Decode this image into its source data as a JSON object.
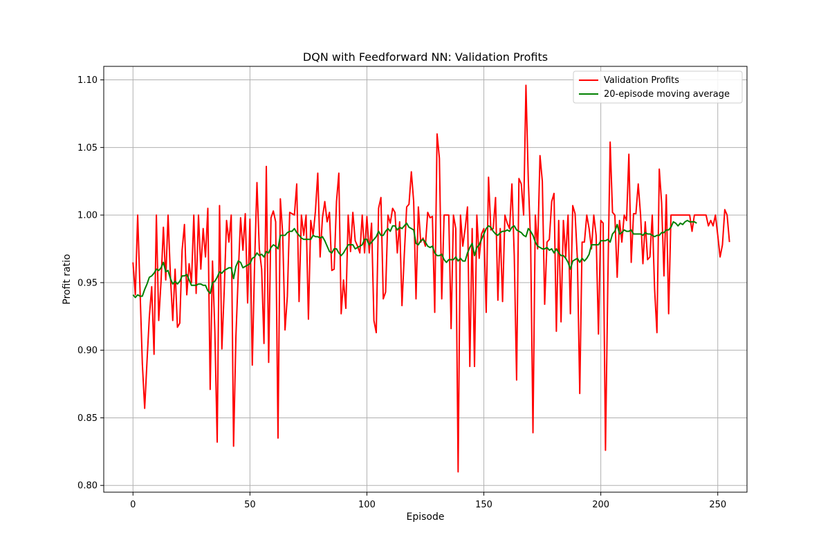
{
  "chart_data": {
    "type": "line",
    "title": "DQN with Feedforward NN: Validation Profits",
    "xlabel": "Episode",
    "ylabel": "Profit ratio",
    "xlim": [
      -12.5,
      262.5
    ],
    "ylim": [
      0.795,
      1.11
    ],
    "xticks": [
      0,
      50,
      100,
      150,
      200,
      250
    ],
    "yticks": [
      0.8,
      0.85,
      0.9,
      0.95,
      1.0,
      1.05,
      1.1
    ],
    "grid": true,
    "legend_position": "top-right",
    "series": [
      {
        "name": "Validation Profits",
        "color": "#ff0000",
        "start_x": 0,
        "values": [
          0.965,
          0.941,
          1.0,
          0.945,
          0.89,
          0.857,
          0.892,
          0.925,
          0.947,
          0.897,
          1.0,
          0.922,
          0.951,
          0.991,
          0.952,
          1.0,
          0.955,
          0.922,
          0.96,
          0.917,
          0.92,
          0.974,
          0.993,
          0.941,
          0.964,
          0.95,
          1.0,
          0.942,
          1.0,
          0.96,
          0.99,
          0.969,
          1.005,
          0.871,
          0.966,
          0.914,
          0.832,
          1.007,
          0.901,
          0.944,
          0.996,
          0.98,
          1.0,
          0.829,
          0.91,
          0.956,
          0.998,
          0.974,
          1.001,
          0.935,
          0.997,
          0.889,
          0.965,
          1.024,
          0.975,
          0.96,
          0.905,
          1.036,
          0.891,
          0.998,
          1.003,
          0.995,
          0.835,
          1.012,
          0.986,
          0.915,
          0.94,
          1.002,
          1.001,
          1.0,
          1.023,
          0.936,
          1.0,
          0.985,
          1.0,
          0.923,
          0.996,
          0.985,
          1.003,
          1.031,
          0.969,
          0.998,
          1.01,
          0.995,
          1.002,
          0.959,
          0.96,
          1.01,
          1.031,
          0.927,
          0.952,
          0.931,
          1.0,
          0.973,
          1.002,
          0.981,
          0.977,
          0.972,
          1.0,
          0.972,
          0.999,
          0.972,
          0.994,
          0.922,
          0.913,
          1.005,
          1.013,
          0.938,
          0.943,
          1.0,
          0.994,
          1.005,
          1.002,
          0.972,
          0.995,
          0.933,
          0.971,
          1.006,
          1.008,
          1.032,
          1.01,
          0.938,
          1.006,
          0.98,
          0.983,
          0.977,
          1.002,
          0.998,
          0.999,
          0.928,
          1.06,
          1.042,
          0.938,
          1.0,
          1.0,
          1.0,
          0.916,
          1.0,
          0.99,
          0.81,
          1.0,
          0.977,
          0.99,
          1.006,
          0.888,
          0.99,
          0.888,
          1.0,
          0.968,
          0.986,
          0.99,
          0.928,
          1.028,
          0.989,
          0.99,
          1.013,
          0.937,
          0.99,
          0.936,
          1.0,
          0.994,
          0.99,
          1.023,
          0.97,
          0.878,
          1.027,
          1.023,
          1.0,
          1.096,
          1.026,
          0.98,
          0.839,
          1.0,
          0.975,
          1.044,
          1.025,
          0.934,
          0.98,
          0.982,
          1.01,
          1.016,
          0.914,
          0.996,
          0.921,
          0.996,
          0.969,
          1.0,
          0.927,
          1.007,
          1.001,
          0.967,
          0.868,
          0.98,
          0.98,
          1.0,
          0.99,
          0.975,
          1.0,
          0.985,
          0.912,
          0.996,
          0.994,
          0.826,
          0.95,
          1.054,
          1.002,
          1.0,
          0.954,
          0.996,
          0.98,
          1.0,
          0.996,
          1.045,
          0.965,
          1.001,
          1.001,
          1.023,
          1.0,
          0.964,
          0.995,
          0.967,
          0.969,
          1.0,
          0.945,
          0.913,
          1.034,
          1.009,
          0.955,
          1.015,
          0.927,
          1.0,
          1.0,
          1.0,
          1.0,
          1.0,
          1.0,
          1.0,
          1.0,
          1.0,
          0.988,
          1.0,
          1.0,
          1.0,
          1.0,
          1.0,
          1.0,
          0.992,
          0.996,
          0.992,
          1.0,
          0.985,
          0.969,
          0.978,
          1.004,
          1.0,
          0.98
        ]
      },
      {
        "name": "20-episode moving average",
        "color": "#008000",
        "start_x": 0,
        "values": [
          0.941,
          0.939,
          0.941,
          0.94,
          0.94,
          0.945,
          0.949,
          0.954,
          0.955,
          0.957,
          0.96,
          0.959,
          0.961,
          0.965,
          0.958,
          0.959,
          0.953,
          0.949,
          0.951,
          0.949,
          0.951,
          0.955,
          0.955,
          0.956,
          0.952,
          0.948,
          0.948,
          0.948,
          0.949,
          0.949,
          0.948,
          0.948,
          0.944,
          0.942,
          0.95,
          0.951,
          0.954,
          0.958,
          0.957,
          0.959,
          0.96,
          0.961,
          0.961,
          0.953,
          0.962,
          0.966,
          0.965,
          0.961,
          0.962,
          0.963,
          0.964,
          0.968,
          0.969,
          0.972,
          0.97,
          0.971,
          0.969,
          0.973,
          0.972,
          0.976,
          0.978,
          0.977,
          0.975,
          0.985,
          0.985,
          0.985,
          0.987,
          0.988,
          0.988,
          0.99,
          0.987,
          0.985,
          0.983,
          0.982,
          0.982,
          0.982,
          0.982,
          0.985,
          0.984,
          0.984,
          0.983,
          0.984,
          0.981,
          0.977,
          0.973,
          0.972,
          0.975,
          0.975,
          0.972,
          0.97,
          0.972,
          0.975,
          0.978,
          0.978,
          0.978,
          0.975,
          0.976,
          0.977,
          0.978,
          0.982,
          0.982,
          0.978,
          0.98,
          0.982,
          0.984,
          0.988,
          0.985,
          0.985,
          0.988,
          0.99,
          0.988,
          0.992,
          0.992,
          0.989,
          0.991,
          0.99,
          0.992,
          0.994,
          0.991,
          0.99,
          0.989,
          0.979,
          0.978,
          0.981,
          0.982,
          0.98,
          0.977,
          0.976,
          0.977,
          0.972,
          0.97,
          0.97,
          0.971,
          0.967,
          0.965,
          0.967,
          0.967,
          0.967,
          0.969,
          0.966,
          0.968,
          0.966,
          0.966,
          0.972,
          0.976,
          0.979,
          0.97,
          0.976,
          0.978,
          0.982,
          0.986,
          0.99,
          0.992,
          0.991,
          0.988,
          0.986,
          0.985,
          0.987,
          0.988,
          0.988,
          0.989,
          0.988,
          0.991,
          0.992,
          0.989,
          0.988,
          0.987,
          0.985,
          0.984,
          0.99,
          0.988,
          0.985,
          0.98,
          0.977,
          0.976,
          0.975,
          0.975,
          0.976,
          0.974,
          0.975,
          0.972,
          0.975,
          0.972,
          0.97,
          0.97,
          0.968,
          0.965,
          0.96,
          0.966,
          0.967,
          0.968,
          0.965,
          0.968,
          0.966,
          0.968,
          0.971,
          0.978,
          0.978,
          0.978,
          0.978,
          0.981,
          0.981,
          0.981,
          0.982,
          0.98,
          0.986,
          0.988,
          0.993,
          0.986,
          0.987,
          0.989,
          0.988,
          0.988,
          0.989,
          0.986,
          0.986,
          0.986,
          0.986,
          0.985,
          0.987,
          0.986,
          0.986,
          0.985,
          0.984,
          0.985,
          0.985,
          0.987,
          0.987,
          0.989,
          0.989,
          0.991,
          0.995,
          0.994,
          0.992,
          0.994,
          0.993,
          0.995,
          0.996,
          0.995,
          0.995,
          0.995,
          0.994
        ]
      }
    ]
  }
}
